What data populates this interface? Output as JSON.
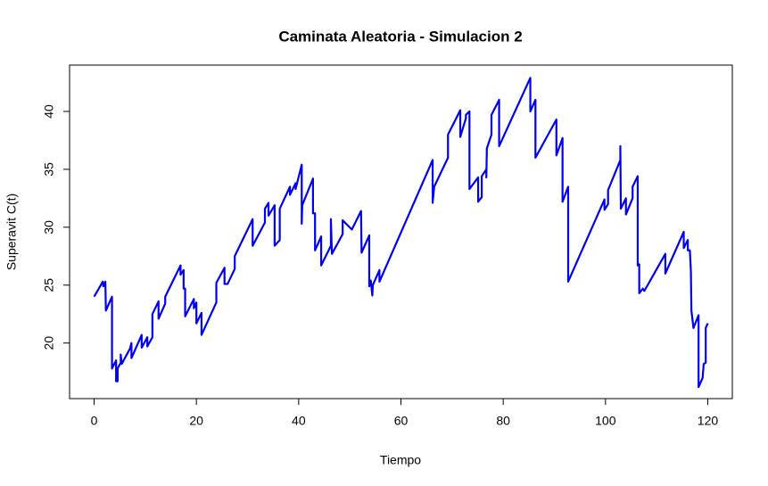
{
  "chart_data": {
    "type": "line",
    "title": "Caminata Aleatoria - Simulacion 2",
    "x_label": "Tiempo",
    "y_label": "Superavit C(t)",
    "color": "#0000ee",
    "xlim": [
      -4.8,
      124.8
    ],
    "ylim": [
      15.2,
      44.0
    ],
    "xticks": [
      0,
      20,
      40,
      60,
      80,
      100,
      120
    ],
    "yticks": [
      20,
      25,
      30,
      35,
      40
    ],
    "x": [
      0,
      1.7,
      1.8,
      2.2,
      2.3,
      3.5,
      3.5,
      4.3,
      4.3,
      4.6,
      4.6,
      5.2,
      5.2,
      5.4,
      7.0,
      7.3,
      7.3,
      9.3,
      9.3,
      10.4,
      10.4,
      11.4,
      11.4,
      12.6,
      12.6,
      13.9,
      13.9,
      16.9,
      16.9,
      17.5,
      17.5,
      17.8,
      17.8,
      19.5,
      19.5,
      20.0,
      20.0,
      21.0,
      21.0,
      23.9,
      23.9,
      25.5,
      25.5,
      26.1,
      27.5,
      27.5,
      31.0,
      31.0,
      33.4,
      33.4,
      34.1,
      34.1,
      35.3,
      35.3,
      36.3,
      36.3,
      38.3,
      38.3,
      39.4,
      39.4,
      40.6,
      40.6,
      40.7,
      42.8,
      42.8,
      43.2,
      43.2,
      44.4,
      44.4,
      46.3,
      46.3,
      46.5,
      48.6,
      48.6,
      50.4,
      52.2,
      52.3,
      53.8,
      53.8,
      54.1,
      54.4,
      54.5,
      55.8,
      55.8,
      66.2,
      66.2,
      66.5,
      69.2,
      69.2,
      71.6,
      71.6,
      72.7,
      72.7,
      73.4,
      73.4,
      75.1,
      75.1,
      75.8,
      75.8,
      76.7,
      76.7,
      76.8,
      77.7,
      77.7,
      79.2,
      79.2,
      85.3,
      85.3,
      86.3,
      86.3,
      90.4,
      90.4,
      91.6,
      91.6,
      92.7,
      92.7,
      99.8,
      99.8,
      100.5,
      100.5,
      102.9,
      102.9,
      103.0,
      104.0,
      104.0,
      105.3,
      105.3,
      106.3,
      106.3,
      106.6,
      106.6,
      107.3,
      107.6,
      111.7,
      111.7,
      115.3,
      115.3,
      116.1,
      116.1,
      116.5,
      116.7,
      116.8,
      117.2,
      118.2,
      118.2,
      119.0,
      119.2,
      119.6,
      119.6,
      120.0
    ],
    "y": [
      24.0,
      25.3,
      24.9,
      25.3,
      22.8,
      24.0,
      17.8,
      18.5,
      16.7,
      16.7,
      17.8,
      18.3,
      19.0,
      18.2,
      19.5,
      20.0,
      18.7,
      20.7,
      19.6,
      20.5,
      19.7,
      20.5,
      22.5,
      23.6,
      22.1,
      23.4,
      24.0,
      26.7,
      25.9,
      26.3,
      24.7,
      24.7,
      22.3,
      23.8,
      23.0,
      23.5,
      21.7,
      22.6,
      20.7,
      23.5,
      25.2,
      26.5,
      25.1,
      25.1,
      26.4,
      27.5,
      30.7,
      28.4,
      30.4,
      31.6,
      32.1,
      31.0,
      31.9,
      28.4,
      28.9,
      31.6,
      33.5,
      32.8,
      33.8,
      33.3,
      35.4,
      30.3,
      31.9,
      34.2,
      31.2,
      31.2,
      28.0,
      29.2,
      26.7,
      28.4,
      30.7,
      27.7,
      29.4,
      30.6,
      29.8,
      31.4,
      27.8,
      29.3,
      24.9,
      25.4,
      24.1,
      25.0,
      26.3,
      25.3,
      35.8,
      32.1,
      33.5,
      36.0,
      38.0,
      40.1,
      37.8,
      39.4,
      39.7,
      40.0,
      33.3,
      34.3,
      32.2,
      32.6,
      34.4,
      35.0,
      34.3,
      36.8,
      38.0,
      39.7,
      41.0,
      37.0,
      42.9,
      40.0,
      41.0,
      36.0,
      39.3,
      36.2,
      37.7,
      32.2,
      33.5,
      25.3,
      32.4,
      31.5,
      32.0,
      33.2,
      35.8,
      37.0,
      31.6,
      32.5,
      31.1,
      32.5,
      33.5,
      34.4,
      26.7,
      26.8,
      24.3,
      24.7,
      24.5,
      27.7,
      26.0,
      29.6,
      28.2,
      28.9,
      28.0,
      28.0,
      26.2,
      22.8,
      21.3,
      22.4,
      16.2,
      17.0,
      18.2,
      18.3,
      21.3,
      21.7
    ]
  }
}
